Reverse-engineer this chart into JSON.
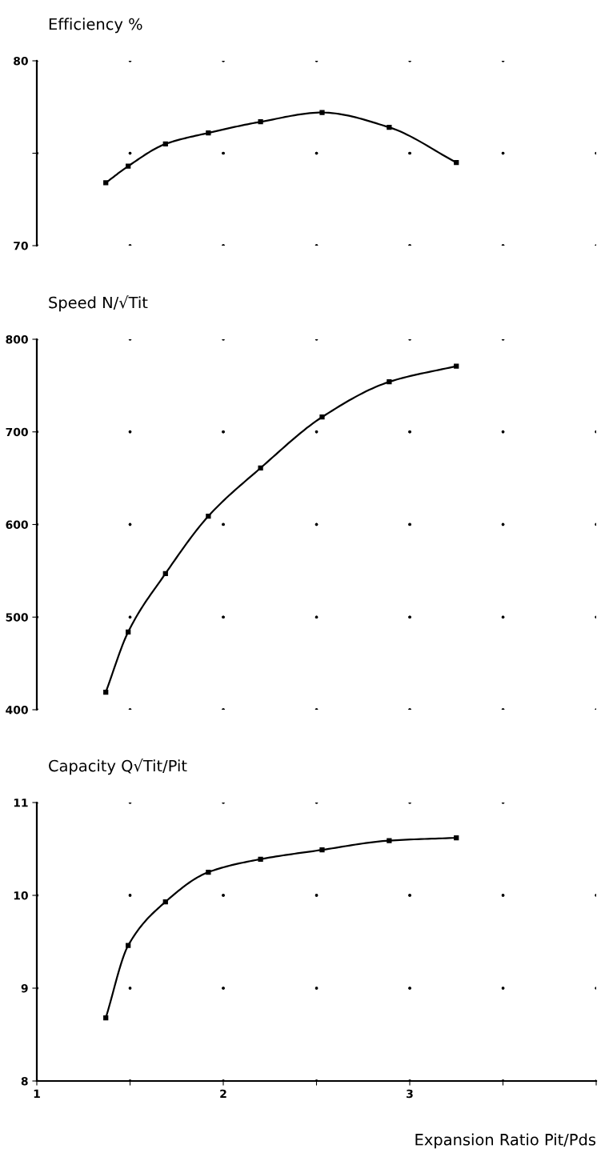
{
  "chart_data": [
    {
      "type": "line",
      "title": "Efficiency %",
      "x": [
        1.37,
        1.49,
        1.69,
        1.92,
        2.2,
        2.53,
        2.89,
        3.25
      ],
      "series": [
        {
          "color": "#000000",
          "values": [
            73.4,
            74.3,
            75.5,
            76.1,
            76.7,
            77.2,
            76.4,
            74.5
          ]
        }
      ],
      "marker": "square",
      "line_style": "solid",
      "xlim": [
        1,
        4
      ],
      "xticks": [
        1,
        {
          "value": 1.5,
          "label": null
        },
        2,
        {
          "value": 2.5,
          "label": null
        },
        3,
        {
          "value": 3.5,
          "label": null
        },
        {
          "value": 4,
          "label": null
        }
      ],
      "ylim": [
        70,
        80
      ],
      "yticks": [
        70,
        {
          "value": 75,
          "label": null
        },
        80
      ],
      "grid": true,
      "tick_labels": "y"
    },
    {
      "type": "line",
      "title": "Speed N/√Tit",
      "x": [
        1.37,
        1.49,
        1.69,
        1.92,
        2.2,
        2.53,
        2.89,
        3.25
      ],
      "series": [
        {
          "color": "#000000",
          "values": [
            419,
            484,
            547,
            609,
            661,
            716,
            754,
            771
          ]
        }
      ],
      "marker": "square",
      "line_style": "solid",
      "xlim": [
        1,
        4
      ],
      "xticks": [
        1,
        {
          "value": 1.5,
          "label": null
        },
        2,
        {
          "value": 2.5,
          "label": null
        },
        3,
        {
          "value": 3.5,
          "label": null
        },
        {
          "value": 4,
          "label": null
        }
      ],
      "ylim": [
        400,
        800
      ],
      "yticks": [
        400,
        500,
        600,
        700,
        800
      ],
      "grid": true,
      "tick_labels": "y"
    },
    {
      "type": "line",
      "title": "Capacity Q√Tit/Pit",
      "xlabel": "Expansion Ratio Pit/Pds",
      "x": [
        1.37,
        1.49,
        1.69,
        1.92,
        2.2,
        2.53,
        2.89,
        3.25
      ],
      "series": [
        {
          "color": "#000000",
          "values": [
            8.68,
            9.46,
            9.93,
            10.25,
            10.39,
            10.49,
            10.59,
            10.62
          ]
        }
      ],
      "marker": "square",
      "line_style": "solid",
      "xlim": [
        1,
        4
      ],
      "xticks": [
        1,
        {
          "value": 1.5,
          "label": null
        },
        2,
        {
          "value": 2.5,
          "label": null
        },
        3,
        {
          "value": 3.5,
          "label": null
        },
        {
          "value": 4,
          "label": null
        }
      ],
      "ylim": [
        8,
        11
      ],
      "yticks": [
        8,
        9,
        10,
        11
      ],
      "grid": true
    }
  ]
}
